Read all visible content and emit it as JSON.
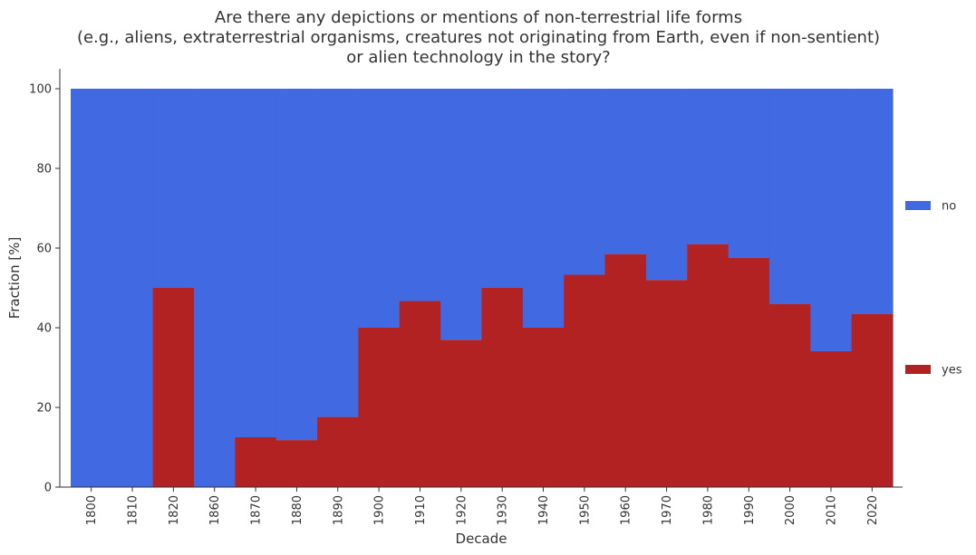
{
  "chart_data": {
    "type": "bar",
    "stacked": true,
    "title_lines": [
      "Are there any depictions or mentions of non-terrestrial life forms",
      "(e.g., aliens, extraterrestrial organisms, creatures not originating from Earth, even if non-sentient)",
      "or alien technology in the story?"
    ],
    "xlabel": "Decade",
    "ylabel": "Fraction [%]",
    "ylim": [
      0,
      105
    ],
    "yticks": [
      0,
      20,
      40,
      60,
      80,
      100
    ],
    "grid": false,
    "legend_position": "right",
    "categories": [
      "1800",
      "1810",
      "1820",
      "1860",
      "1870",
      "1880",
      "1890",
      "1900",
      "1910",
      "1920",
      "1930",
      "1940",
      "1950",
      "1960",
      "1970",
      "1980",
      "1990",
      "2000",
      "2010",
      "2020"
    ],
    "series": [
      {
        "name": "yes",
        "color": "#b22222",
        "values": [
          0,
          0,
          50,
          0,
          12.5,
          11.8,
          17.6,
          40,
          46.7,
          37,
          50,
          40,
          53.3,
          58.5,
          52,
          61,
          57.5,
          46,
          34.1,
          43.5
        ]
      },
      {
        "name": "no",
        "color": "#4169e1",
        "values": [
          100,
          100,
          50,
          100,
          87.5,
          88.2,
          82.4,
          60,
          53.3,
          63,
          50,
          60,
          46.7,
          41.5,
          48,
          39,
          42.5,
          54,
          65.9,
          56.5
        ]
      }
    ]
  }
}
